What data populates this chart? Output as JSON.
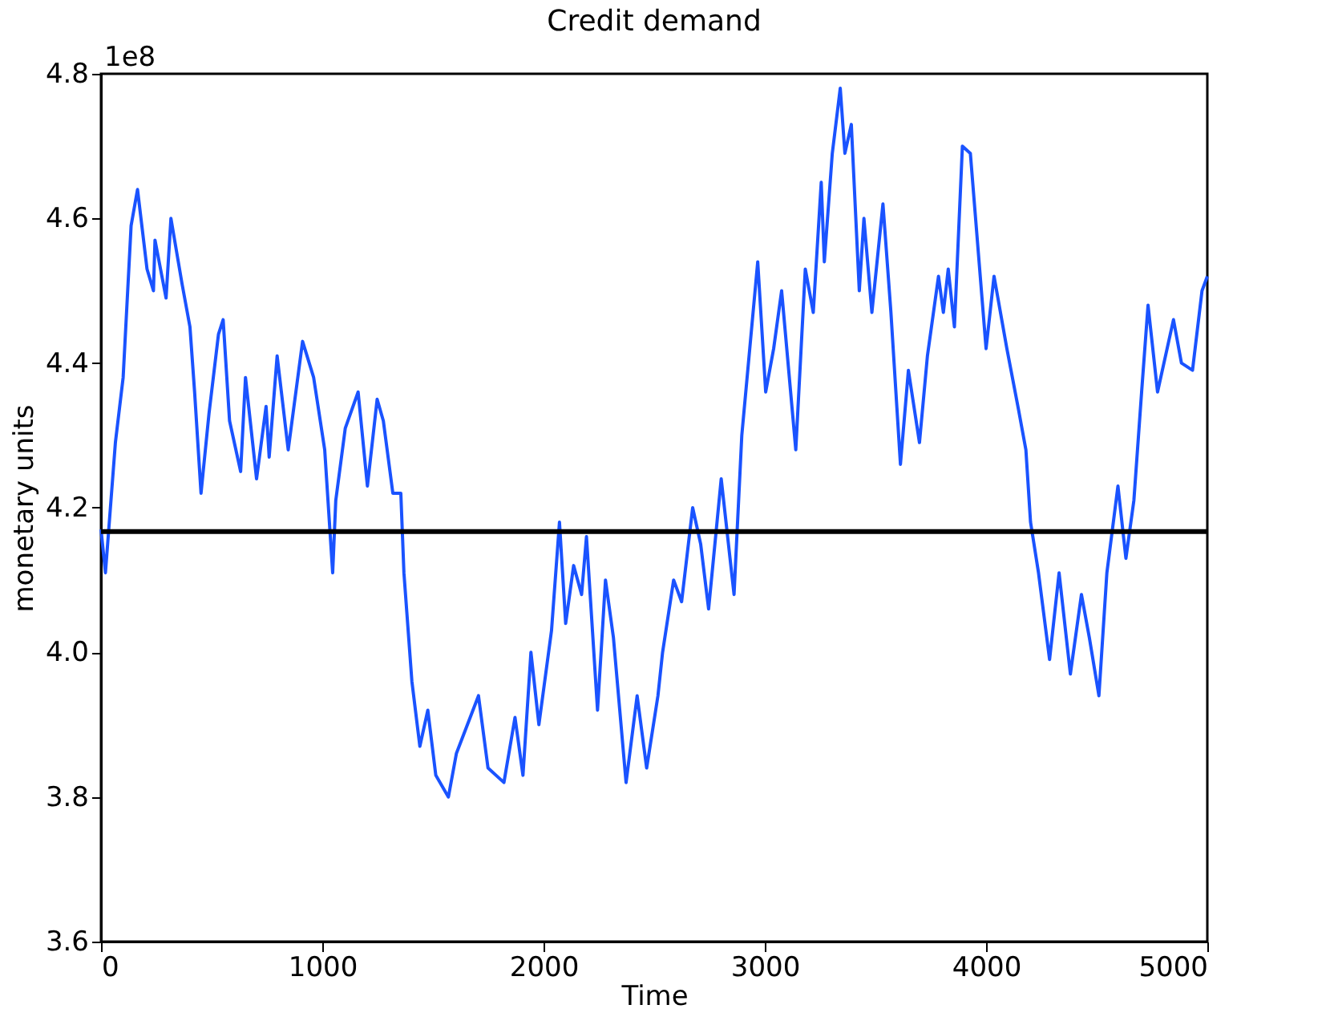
{
  "chart_data": {
    "type": "line",
    "title": "Credit demand",
    "xlabel": "Time",
    "ylabel": "monetary units",
    "annotations": [
      "1e8"
    ],
    "xlim": [
      0,
      5000
    ],
    "xticks": [
      0,
      1000,
      2000,
      3000,
      4000,
      5000
    ],
    "ylim": [
      3.6,
      4.8
    ],
    "yticks": [
      3.6,
      3.8,
      {
        "value": 4.0,
        "label": "4.0"
      },
      4.2,
      4.4,
      4.6,
      4.8
    ],
    "grid": false,
    "marker": "none",
    "line_style": "solid",
    "ref_lines": [
      {
        "axis": "y",
        "value": 4.167,
        "color": "#000000"
      }
    ],
    "series": [
      {
        "color": "#1a53ff",
        "x": [
          0,
          20,
          65,
          100,
          136,
          165,
          208,
          237,
          244,
          294,
          316,
          366,
          402,
          423,
          452,
          488,
          531,
          552,
          581,
          631,
          653,
          703,
          746,
          760,
          796,
          846,
          911,
          961,
          1011,
          1047,
          1061,
          1104,
          1162,
          1204,
          1248,
          1276,
          1319,
          1355,
          1369,
          1405,
          1441,
          1477,
          1513,
          1570,
          1606,
          1706,
          1749,
          1821,
          1871,
          1907,
          1943,
          1979,
          2036,
          2072,
          2100,
          2136,
          2172,
          2194,
          2244,
          2280,
          2316,
          2373,
          2423,
          2466,
          2517,
          2538,
          2588,
          2624,
          2674,
          2710,
          2746,
          2803,
          2861,
          2896,
          2932,
          2968,
          3004,
          3040,
          3076,
          3140,
          3183,
          3219,
          3255,
          3269,
          3305,
          3341,
          3362,
          3391,
          3427,
          3448,
          3484,
          3534,
          3570,
          3613,
          3649,
          3699,
          3735,
          3785,
          3807,
          3829,
          3857,
          3893,
          3929,
          3950,
          4000,
          4036,
          4094,
          4144,
          4180,
          4201,
          4237,
          4287,
          4330,
          4381,
          4431,
          4467,
          4510,
          4546,
          4596,
          4632,
          4668,
          4703,
          4732,
          4775,
          4847,
          4883,
          4933,
          4976,
          5000
        ],
        "values": [
          4.17,
          4.11,
          4.29,
          4.38,
          4.59,
          4.64,
          4.53,
          4.5,
          4.57,
          4.49,
          4.6,
          4.51,
          4.45,
          4.36,
          4.22,
          4.33,
          4.44,
          4.46,
          4.32,
          4.25,
          4.38,
          4.24,
          4.34,
          4.27,
          4.41,
          4.28,
          4.43,
          4.38,
          4.28,
          4.11,
          4.21,
          4.31,
          4.36,
          4.23,
          4.35,
          4.32,
          4.22,
          4.22,
          4.11,
          3.96,
          3.87,
          3.92,
          3.83,
          3.8,
          3.86,
          3.94,
          3.84,
          3.82,
          3.91,
          3.83,
          4.0,
          3.9,
          4.03,
          4.18,
          4.04,
          4.12,
          4.08,
          4.16,
          3.92,
          4.1,
          4.02,
          3.82,
          3.94,
          3.84,
          3.94,
          4.0,
          4.1,
          4.07,
          4.2,
          4.15,
          4.06,
          4.24,
          4.08,
          4.3,
          4.42,
          4.54,
          4.36,
          4.42,
          4.5,
          4.28,
          4.53,
          4.47,
          4.65,
          4.54,
          4.69,
          4.78,
          4.69,
          4.73,
          4.5,
          4.6,
          4.47,
          4.62,
          4.47,
          4.26,
          4.39,
          4.29,
          4.41,
          4.52,
          4.47,
          4.53,
          4.45,
          4.7,
          4.69,
          4.61,
          4.42,
          4.52,
          4.42,
          4.34,
          4.28,
          4.18,
          4.11,
          3.99,
          4.11,
          3.97,
          4.08,
          4.02,
          3.94,
          4.11,
          4.23,
          4.13,
          4.21,
          4.36,
          4.48,
          4.36,
          4.46,
          4.4,
          4.39,
          4.5,
          4.52
        ]
      }
    ]
  }
}
